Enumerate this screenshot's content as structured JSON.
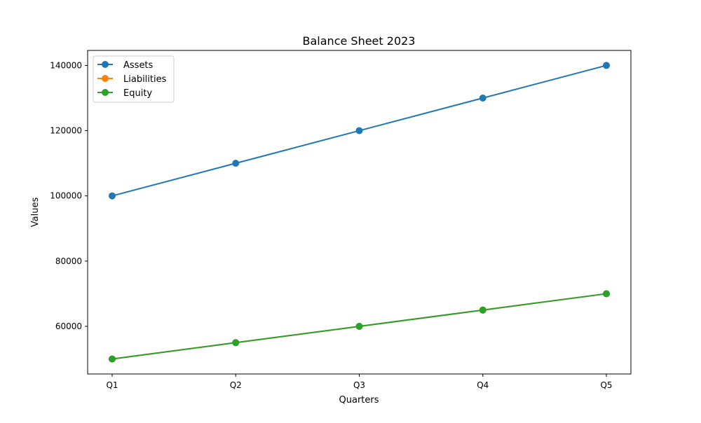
{
  "chart_data": {
    "type": "line",
    "title": "Balance Sheet 2023",
    "xlabel": "Quarters",
    "ylabel": "Values",
    "categories": [
      "Q1",
      "Q2",
      "Q3",
      "Q4",
      "Q5"
    ],
    "ylim": [
      45400,
      144600
    ],
    "yticks": [
      60000,
      80000,
      100000,
      120000,
      140000
    ],
    "grid": false,
    "legend_position": "top-left",
    "series": [
      {
        "name": "Assets",
        "color": "#1f77b4",
        "marker": "circle",
        "values": [
          100000,
          110000,
          120000,
          130000,
          140000
        ]
      },
      {
        "name": "Liabilities",
        "color": "#ff7f0e",
        "marker": "circle",
        "values": [
          50000,
          55000,
          60000,
          65000,
          70000
        ]
      },
      {
        "name": "Equity",
        "color": "#2ca02c",
        "marker": "circle",
        "values": [
          50000,
          55000,
          60000,
          65000,
          70000
        ]
      }
    ]
  }
}
